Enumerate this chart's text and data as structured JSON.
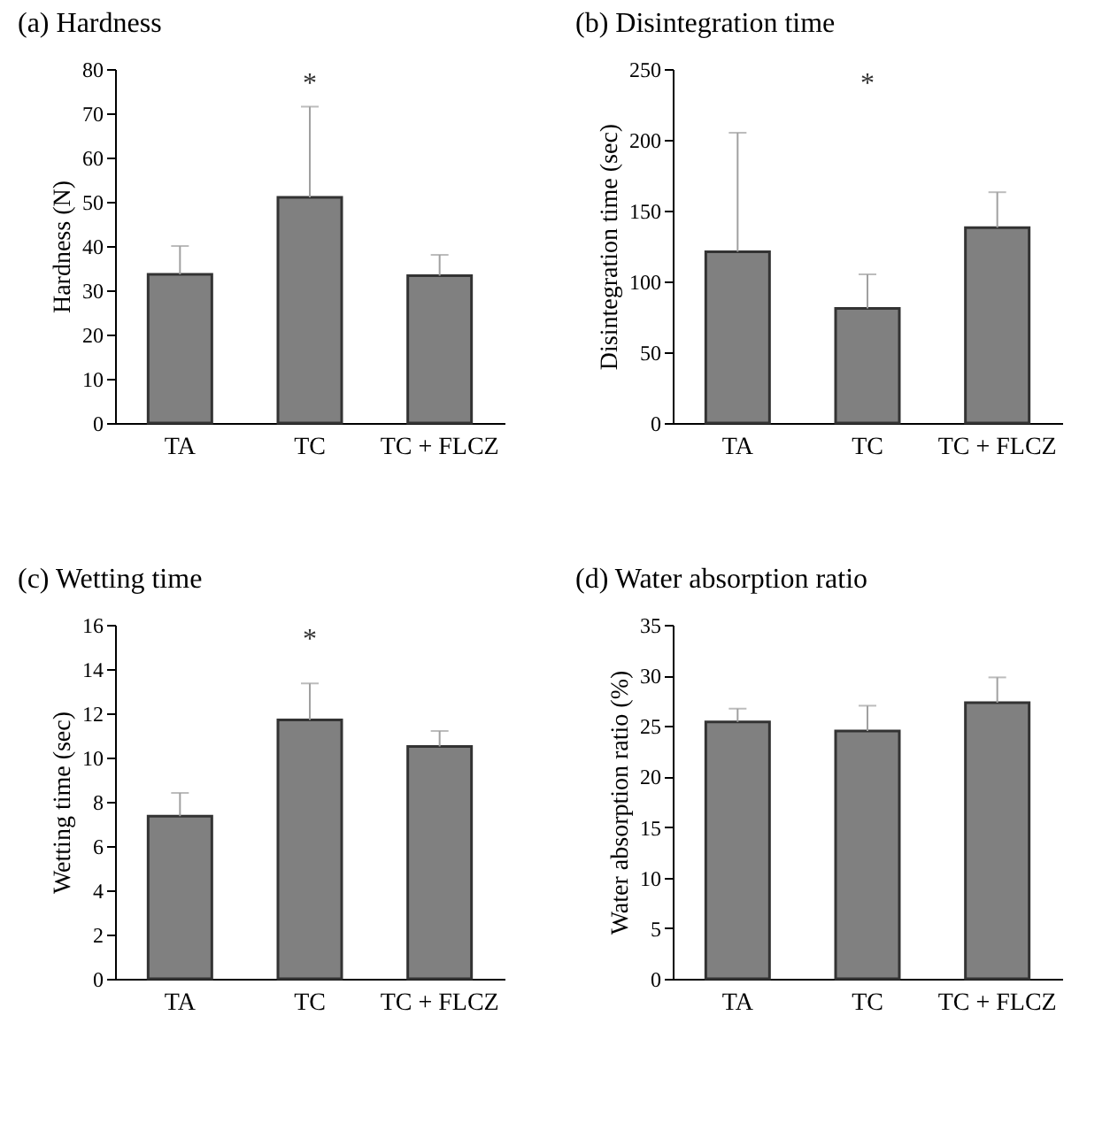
{
  "chart_data": [
    {
      "type": "bar",
      "title": "(a) Hardness",
      "ylabel": "Hardness (N)",
      "categories": [
        "TA",
        "TC",
        "TC + FLCZ"
      ],
      "values": [
        33.6,
        51,
        33.3
      ],
      "color": "#808080",
      "errors": [
        [
          33.6,
          40
        ],
        [
          51,
          71.5
        ],
        [
          33.3,
          38
        ]
      ],
      "ylim": [
        0,
        80
      ],
      "yticks": [
        0,
        10,
        20,
        30,
        40,
        50,
        60,
        70,
        80
      ],
      "annotations": [
        "*"
      ]
    },
    {
      "type": "bar",
      "title": "(b) Disintegration time",
      "ylabel": "Disintegration time (sec)",
      "categories": [
        "TA",
        "TC",
        "TC + FLCZ"
      ],
      "values": [
        121,
        81,
        138
      ],
      "color": "#808080",
      "errors": [
        [
          121,
          205
        ],
        [
          81,
          105
        ],
        [
          138,
          163
        ]
      ],
      "ylim": [
        0,
        250
      ],
      "yticks": [
        0,
        50,
        100,
        150,
        200,
        250
      ],
      "annotations": [
        "*"
      ]
    },
    {
      "type": "bar",
      "title": "(c) Wetting time",
      "ylabel": "Wetting time (sec)",
      "categories": [
        "TA",
        "TC",
        "TC + FLCZ"
      ],
      "values": [
        7.35,
        11.7,
        10.5
      ],
      "color": "#808080",
      "errors": [
        [
          7.35,
          8.4
        ],
        [
          11.7,
          13.35
        ],
        [
          10.5,
          11.2
        ]
      ],
      "ylim": [
        0,
        16
      ],
      "yticks": [
        0,
        2,
        4,
        6,
        8,
        10,
        12,
        14,
        16
      ],
      "annotations": [
        "*"
      ]
    },
    {
      "type": "bar",
      "title": "(d) Water absorption ratio",
      "ylabel": "Water absorption ratio (%)",
      "categories": [
        "TA",
        "TC",
        "TC + FLCZ"
      ],
      "values": [
        25.4,
        24.5,
        27.3
      ],
      "color": "#808080",
      "errors": [
        [
          25.4,
          26.7
        ],
        [
          24.5,
          27.0
        ],
        [
          27.3,
          29.8
        ]
      ],
      "ylim": [
        0,
        35
      ],
      "yticks": [
        0,
        5,
        10,
        15,
        20,
        25,
        30,
        35
      ]
    }
  ]
}
